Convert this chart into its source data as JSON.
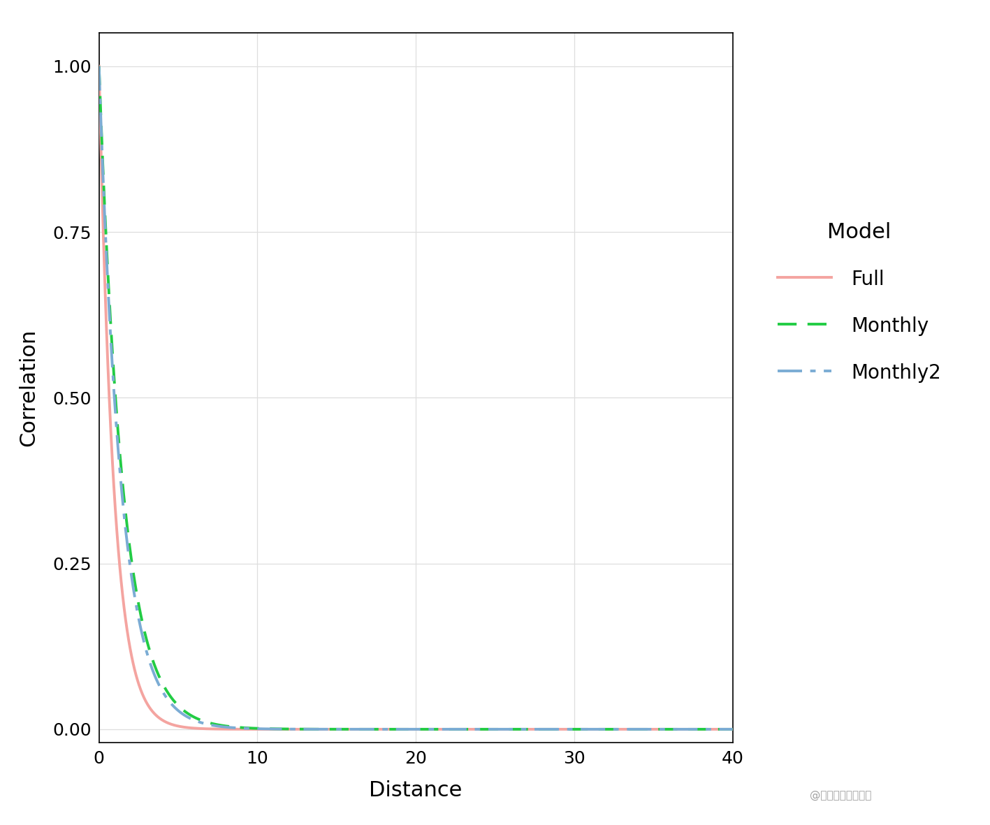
{
  "title": "",
  "xlabel": "Distance",
  "ylabel": "Correlation",
  "legend_title": "Model",
  "legend_entries": [
    "Full",
    "Monthly",
    "Monthly2"
  ],
  "xlim": [
    0,
    40
  ],
  "ylim": [
    -0.02,
    1.05
  ],
  "xticks": [
    0,
    10,
    20,
    30,
    40
  ],
  "yticks": [
    0.0,
    0.25,
    0.5,
    0.75,
    1.0
  ],
  "full_color": "#F4A4A0",
  "monthly_color": "#22CC44",
  "monthly2_color": "#7BACD4",
  "full_range": 2.8,
  "monthly_range": 4.5,
  "monthly2_range": 4.2,
  "background_color": "#FFFFFF",
  "grid_color": "#DEDEDE",
  "axis_label_fontsize": 22,
  "tick_fontsize": 18,
  "legend_fontsize": 20,
  "legend_title_fontsize": 22,
  "line_width": 2.8,
  "watermark": "@稺土掴金技术社区"
}
